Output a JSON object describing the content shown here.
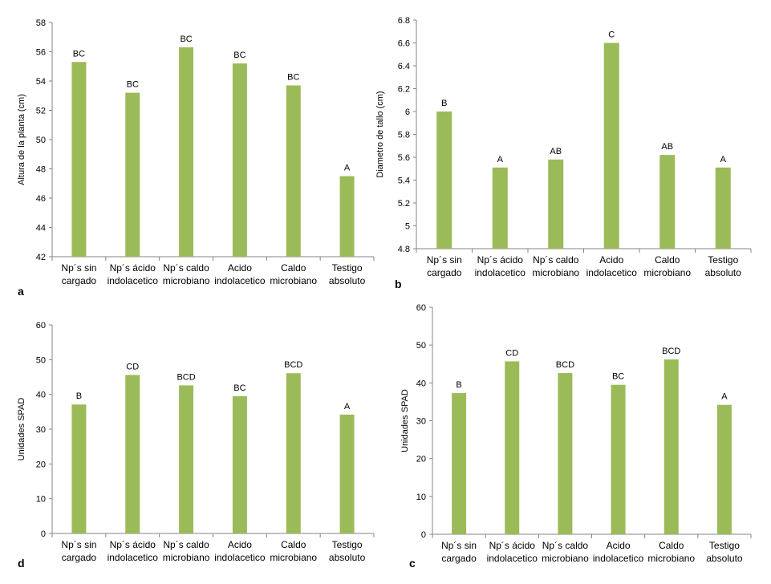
{
  "bar_color": "#9bbb59",
  "axis_color": "#868686",
  "chart_data": [
    {
      "panel": "a",
      "type": "bar",
      "ylabel": "Altura de la planta (cm)",
      "ylim": [
        42,
        58
      ],
      "yticks": [
        "42",
        "44",
        "46",
        "48",
        "50",
        "52",
        "54",
        "56",
        "58"
      ],
      "categories": [
        [
          "Np´s sin",
          "cargado"
        ],
        [
          "Np´s ácido",
          "indolacetico"
        ],
        [
          "Np´s caldo",
          "microbiano"
        ],
        [
          "Acido",
          "indolacetico"
        ],
        [
          "Caldo",
          "microbiano"
        ],
        [
          "Testigo",
          "absoluto"
        ]
      ],
      "values": [
        55.3,
        53.2,
        56.3,
        55.2,
        53.7,
        47.5
      ],
      "labels": [
        "BC",
        "BC",
        "BC",
        "BC",
        "BC",
        "A"
      ]
    },
    {
      "panel": "b",
      "type": "bar",
      "ylabel": "Diametro de tallo (cm)",
      "ylim": [
        4.8,
        6.8
      ],
      "yticks": [
        "4.8",
        "5",
        "5.2",
        "5.4",
        "5.6",
        "5.8",
        "6",
        "6.2",
        "6.4",
        "6.6",
        "6.8"
      ],
      "categories": [
        [
          "Np´s sin",
          "cargado"
        ],
        [
          "Np´s ácido",
          "indolacetico"
        ],
        [
          "Np´s caldo",
          "microbiano"
        ],
        [
          "Acido",
          "indolacetico"
        ],
        [
          "Caldo",
          "microbiano"
        ],
        [
          "Testigo",
          "absoluto"
        ]
      ],
      "values": [
        6.0,
        5.51,
        5.58,
        6.6,
        5.62,
        5.51
      ],
      "labels": [
        "B",
        "A",
        "AB",
        "C",
        "AB",
        "A"
      ]
    },
    {
      "panel": "d",
      "type": "bar",
      "ylabel": "Unidades SPAD",
      "ylim": [
        0,
        60
      ],
      "yticks": [
        "0",
        "10",
        "20",
        "30",
        "40",
        "50",
        "60"
      ],
      "categories": [
        [
          "Np´s sin",
          "cargado"
        ],
        [
          "Np´s ácido",
          "indolacetico"
        ],
        [
          "Np´s caldo",
          "microbiano"
        ],
        [
          "Acido",
          "indolacetico"
        ],
        [
          "Caldo",
          "microbiano"
        ],
        [
          "Testigo",
          "absoluto"
        ]
      ],
      "values": [
        37.1,
        45.6,
        42.6,
        39.5,
        46.1,
        34.2
      ],
      "labels": [
        "B",
        "CD",
        "BCD",
        "BC",
        "BCD",
        "A"
      ]
    },
    {
      "panel": "c",
      "type": "bar",
      "ylabel": "Unidades SPAD",
      "ylim": [
        0,
        60
      ],
      "yticks": [
        "0",
        "10",
        "20",
        "30",
        "40",
        "50",
        "60"
      ],
      "categories": [
        [
          "Np´s sin",
          "cargado"
        ],
        [
          "Np´s ácido",
          "indolacetico"
        ],
        [
          "Np´s caldo",
          "microbiano"
        ],
        [
          "Acido",
          "indolacetico"
        ],
        [
          "Caldo",
          "microbiano"
        ],
        [
          "Testigo",
          "absoluto"
        ]
      ],
      "values": [
        37.3,
        45.7,
        42.6,
        39.5,
        46.2,
        34.2
      ],
      "labels": [
        "B",
        "CD",
        "BCD",
        "BC",
        "BCD",
        "A"
      ]
    }
  ]
}
